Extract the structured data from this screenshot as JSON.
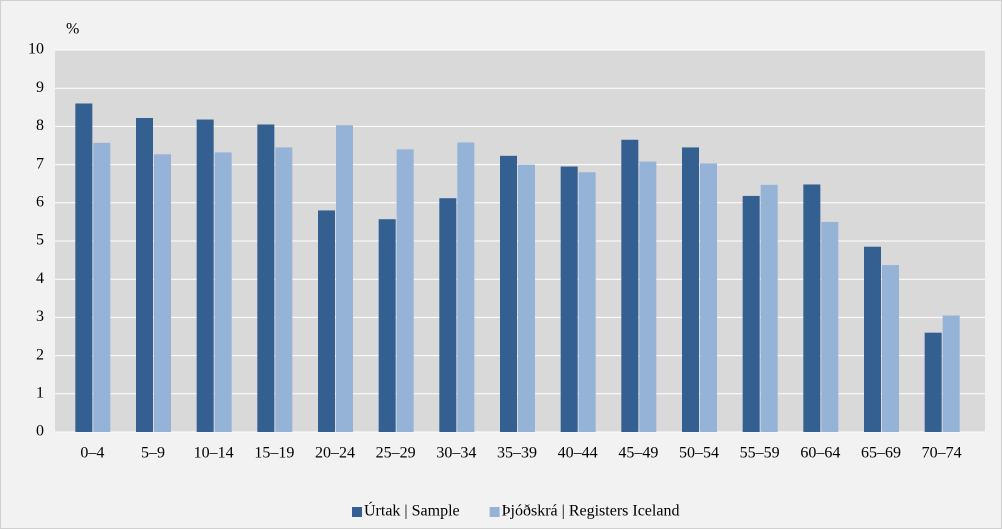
{
  "chart_data": {
    "type": "bar",
    "y_label": "%",
    "categories": [
      "0–4",
      "5–9",
      "10–14",
      "15–19",
      "20–24",
      "25–29",
      "30–34",
      "35–39",
      "40–44",
      "45–49",
      "50–54",
      "55–59",
      "60–64",
      "65–69",
      "70–74"
    ],
    "series": [
      {
        "name": "Úrtak | Sample",
        "color": "#335f91",
        "values": [
          8.6,
          8.22,
          8.18,
          8.05,
          5.8,
          5.57,
          6.12,
          7.23,
          6.95,
          7.65,
          7.45,
          6.18,
          6.48,
          4.85,
          2.6
        ]
      },
      {
        "name": "Þjóðskrá | Registers Iceland",
        "color": "#95b3d7",
        "values": [
          7.57,
          7.27,
          7.32,
          7.45,
          8.03,
          7.4,
          7.58,
          7.0,
          6.8,
          7.08,
          7.03,
          6.47,
          5.5,
          4.37,
          3.05
        ]
      }
    ],
    "ylim": [
      0,
      10
    ],
    "yticks": [
      0,
      1,
      2,
      3,
      4,
      5,
      6,
      7,
      8,
      9,
      10
    ],
    "grid": true,
    "legend": "bottom"
  }
}
